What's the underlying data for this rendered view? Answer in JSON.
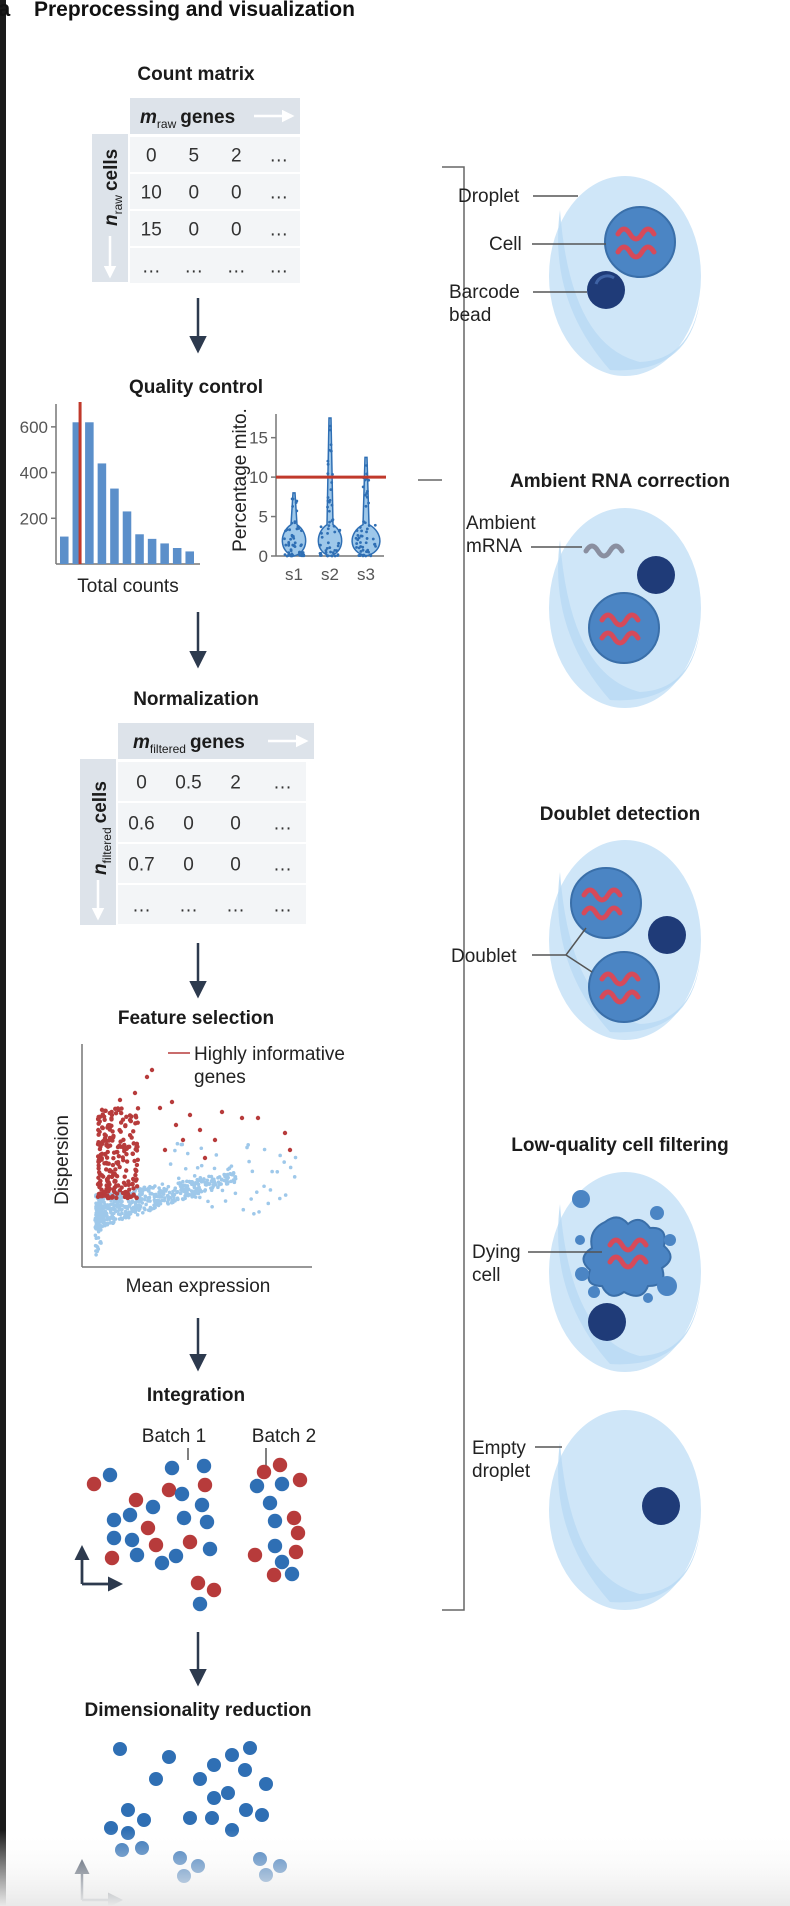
{
  "panel": {
    "letter": "a",
    "title": "Preprocessing and visualization"
  },
  "count_matrix": {
    "title": "Count matrix",
    "col_var": "m",
    "col_sub": "raw",
    "col_word": "genes",
    "row_var": "n",
    "row_sub": "raw",
    "row_word": "cells",
    "rows": [
      [
        "0",
        "5",
        "2",
        "..."
      ],
      [
        "10",
        "0",
        "0",
        "..."
      ],
      [
        "15",
        "0",
        "0",
        "..."
      ],
      [
        "...",
        "...",
        "...",
        "..."
      ]
    ]
  },
  "quality_control": {
    "title": "Quality control",
    "histogram": {
      "xlabel": "Total counts",
      "yticks": [
        "200",
        "400",
        "600"
      ],
      "values": [
        120,
        620,
        620,
        440,
        330,
        230,
        130,
        110,
        90,
        70,
        55
      ],
      "ymax": 700,
      "threshold_bin": 0.6
    },
    "violin": {
      "ylabel": "Percentage mito.",
      "yticks": [
        "0",
        "5",
        "10",
        "15"
      ],
      "ymax": 18,
      "threshold": 10,
      "categories": [
        "s1",
        "s2",
        "s3"
      ],
      "max_values": [
        8,
        17.5,
        12.5
      ]
    }
  },
  "normalization": {
    "title": "Normalization",
    "col_var": "m",
    "col_sub": "filtered",
    "col_word": "genes",
    "row_var": "n",
    "row_sub": "filtered",
    "row_word": "cells",
    "rows": [
      [
        "0",
        "0.5",
        "2",
        "..."
      ],
      [
        "0.6",
        "0",
        "0",
        "..."
      ],
      [
        "0.7",
        "0",
        "0",
        "..."
      ],
      [
        "...",
        "...",
        "...",
        "..."
      ]
    ]
  },
  "feature_selection": {
    "title": "Feature selection",
    "xlabel": "Mean expression",
    "ylabel": "Dispersion",
    "annotation_line1": "Highly informative",
    "annotation_line2": "genes"
  },
  "integration": {
    "title": "Integration",
    "batch1": "Batch 1",
    "batch2": "Batch 2"
  },
  "dimensionality_reduction": {
    "title": "Dimensionality reduction"
  },
  "droplet_panel": {
    "droplet_label": "Droplet",
    "cell_label": "Cell",
    "barcode_line1": "Barcode",
    "barcode_line2": "bead",
    "ambient_title": "Ambient RNA correction",
    "ambient_line1": "Ambient",
    "ambient_line2": "mRNA",
    "doublet_title": "Doublet detection",
    "doublet_label": "Doublet",
    "lowq_title": "Low-quality cell filtering",
    "dying_line1": "Dying",
    "dying_line2": "cell",
    "empty_line1": "Empty",
    "empty_line2": "droplet"
  },
  "colors": {
    "blue": "#2f6fb4",
    "light_blue": "#9ec8ea",
    "red": "#b73b3b",
    "navy": "#1f3b78",
    "droplet": "#cfe6f8",
    "droplet_edge": "#a9d2f0",
    "cell": "#4b85c4",
    "bar": "#5b8fca",
    "arrow": "#2d3a4e"
  }
}
